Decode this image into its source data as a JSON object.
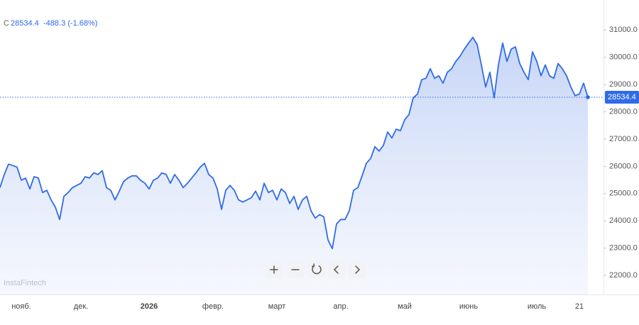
{
  "chart_data": {
    "type": "area",
    "header": {
      "label": "C",
      "change_label": "-488.3 (-1.68%)"
    },
    "watermark": "InstaFintech",
    "color": "#2f6be8",
    "categories": [
      null,
      null,
      null,
      null,
      null,
      "нояб.",
      null,
      null,
      null,
      null,
      null,
      null,
      null,
      null,
      null,
      null,
      null,
      null,
      null,
      "дек.",
      null,
      null,
      null,
      null,
      null,
      null,
      null,
      null,
      null,
      null,
      null,
      null,
      null,
      null,
      null,
      "2026",
      null,
      null,
      null,
      null,
      null,
      null,
      null,
      null,
      null,
      null,
      null,
      null,
      null,
      null,
      "февр.",
      null,
      null,
      null,
      null,
      null,
      null,
      null,
      null,
      null,
      null,
      null,
      null,
      null,
      null,
      "март",
      null,
      null,
      null,
      null,
      null,
      null,
      null,
      null,
      null,
      null,
      null,
      null,
      null,
      null,
      "апр.",
      null,
      null,
      null,
      null,
      null,
      null,
      null,
      null,
      null,
      null,
      null,
      null,
      null,
      null,
      "май",
      null,
      null,
      null,
      null,
      null,
      null,
      null,
      null,
      null,
      null,
      null,
      null,
      null,
      null,
      "июнь",
      null,
      null,
      null,
      null,
      null,
      null,
      null,
      null,
      null,
      null,
      null,
      null,
      null,
      null,
      null,
      "июль",
      null,
      null,
      null,
      null,
      null,
      null,
      null,
      null,
      null,
      "21",
      null,
      null
    ],
    "values": [
      25220,
      25700,
      26080,
      26030,
      25970,
      25490,
      25570,
      25170,
      25620,
      25570,
      25040,
      25120,
      24770,
      24500,
      24050,
      24900,
      25040,
      25220,
      25300,
      25380,
      25620,
      25570,
      25760,
      25700,
      25840,
      25220,
      25120,
      24770,
      25090,
      25440,
      25570,
      25650,
      25650,
      25490,
      25380,
      25170,
      25490,
      25570,
      25760,
      25700,
      25380,
      25700,
      25490,
      25220,
      25380,
      25570,
      25760,
      25970,
      26110,
      25700,
      25570,
      25170,
      24420,
      25120,
      25300,
      25120,
      24770,
      24690,
      24770,
      24850,
      25090,
      24770,
      25380,
      25040,
      25120,
      24770,
      25170,
      25040,
      24640,
      24900,
      24420,
      24770,
      24900,
      24370,
      24100,
      24230,
      24150,
      23300,
      22980,
      23890,
      24050,
      24050,
      24370,
      25120,
      25220,
      25650,
      26110,
      26290,
      26720,
      26560,
      26770,
      27260,
      27040,
      27360,
      27310,
      27710,
      27900,
      28510,
      28650,
      29180,
      29230,
      29580,
      29230,
      29320,
      29050,
      29450,
      29580,
      29850,
      30040,
      30300,
      30520,
      30730,
      30470,
      29720,
      28910,
      29450,
      28510,
      29720,
      30520,
      29850,
      30300,
      30380,
      29770,
      29450,
      29180,
      30200,
      29850,
      29320,
      29720,
      29320,
      29230,
      29770,
      29580,
      29320,
      28910,
      28590,
      28650,
      29050,
      28534.4
    ],
    "ylim": [
      21300,
      32100
    ],
    "yticks": [
      {
        "value": 22000,
        "label": "22000.0"
      },
      {
        "value": 23000,
        "label": "23000.0"
      },
      {
        "value": 24000,
        "label": "24000.0"
      },
      {
        "value": 25000,
        "label": "25000.0"
      },
      {
        "value": 26000,
        "label": "26000.0"
      },
      {
        "value": 27000,
        "label": "27000.0"
      },
      {
        "value": 28000,
        "label": "28000.0"
      },
      {
        "value": 29000,
        "label": "29000.0"
      },
      {
        "value": 30000,
        "label": "30000.0"
      },
      {
        "value": 31000,
        "label": "31000.0"
      }
    ],
    "grid": false
  }
}
